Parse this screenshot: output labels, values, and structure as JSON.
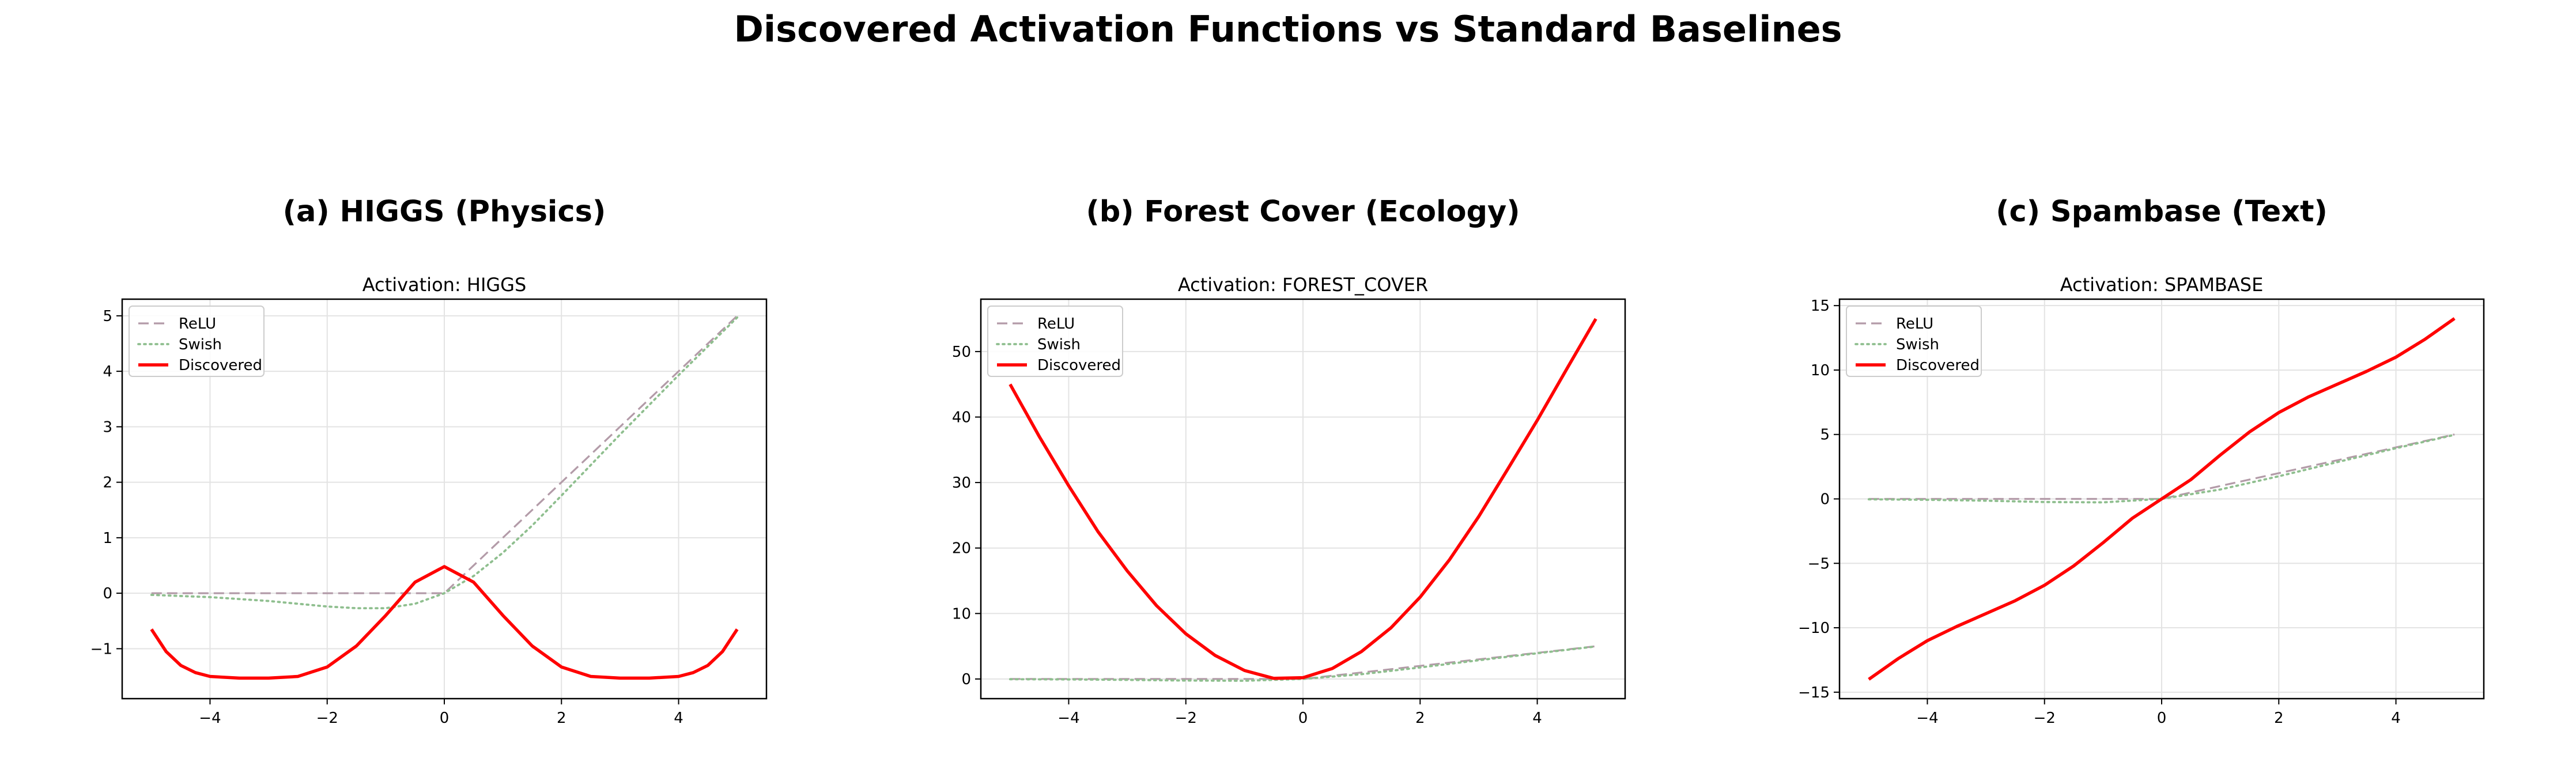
{
  "figure": {
    "suptitle": "Discovered Activation Functions vs Standard Baselines"
  },
  "chart_data": [
    {
      "type": "line",
      "panel_title": "(a) HIGGS (Physics)",
      "title": "Activation: HIGGS",
      "xlabel": "",
      "ylabel": "",
      "xlim": [
        -5.5,
        5.5
      ],
      "ylim": [
        -1.9,
        5.3
      ],
      "xticks": [
        -4,
        -2,
        0,
        2,
        4
      ],
      "xtick_labels": [
        "−4",
        "−2",
        "0",
        "2",
        "4"
      ],
      "yticks": [
        -1,
        0,
        1,
        2,
        3,
        4,
        5
      ],
      "ytick_labels": [
        "−1",
        "0",
        "1",
        "2",
        "3",
        "4",
        "5"
      ],
      "grid": true,
      "legend_position": "upper-left",
      "series": [
        {
          "name": "ReLU",
          "style": "dashed",
          "color": "#b39ba8",
          "x": [
            -5,
            -4,
            -3,
            -2,
            -1,
            0,
            1,
            2,
            3,
            4,
            5
          ],
          "y": [
            0,
            0,
            0,
            0,
            0,
            0,
            1,
            2,
            3,
            4,
            5
          ]
        },
        {
          "name": "Swish",
          "style": "dotted",
          "color": "#8fbf8f",
          "x": [
            -5,
            -4,
            -3,
            -2,
            -1.5,
            -1,
            -0.5,
            0,
            0.5,
            1,
            1.5,
            2,
            3,
            4,
            5
          ],
          "y": [
            -0.03,
            -0.07,
            -0.14,
            -0.24,
            -0.27,
            -0.27,
            -0.19,
            0,
            0.31,
            0.73,
            1.22,
            1.76,
            2.86,
            3.93,
            4.97
          ]
        },
        {
          "name": "Discovered",
          "style": "solid",
          "color": "#ff0000",
          "x": [
            -5,
            -4.75,
            -4.5,
            -4.25,
            -4,
            -3.5,
            -3,
            -2.5,
            -2,
            -1.5,
            -1,
            -0.5,
            0,
            0.5,
            1,
            1.5,
            2,
            2.5,
            3,
            3.5,
            4,
            4.25,
            4.5,
            4.75,
            5
          ],
          "y": [
            -0.65,
            -1.05,
            -1.3,
            -1.43,
            -1.5,
            -1.53,
            -1.53,
            -1.5,
            -1.33,
            -0.95,
            -0.4,
            0.2,
            0.48,
            0.2,
            -0.4,
            -0.95,
            -1.33,
            -1.5,
            -1.53,
            -1.53,
            -1.5,
            -1.43,
            -1.3,
            -1.05,
            -0.65
          ]
        }
      ]
    },
    {
      "type": "line",
      "panel_title": "(b) Forest Cover (Ecology)",
      "title": "Activation: FOREST_COVER",
      "xlabel": "",
      "ylabel": "",
      "xlim": [
        -5.5,
        5.5
      ],
      "ylim": [
        -3,
        58
      ],
      "xticks": [
        -4,
        -2,
        0,
        2,
        4
      ],
      "xtick_labels": [
        "−4",
        "−2",
        "0",
        "2",
        "4"
      ],
      "yticks": [
        0,
        10,
        20,
        30,
        40,
        50
      ],
      "ytick_labels": [
        "0",
        "10",
        "20",
        "30",
        "40",
        "50"
      ],
      "grid": true,
      "legend_position": "upper-left",
      "series": [
        {
          "name": "ReLU",
          "style": "dashed",
          "color": "#b39ba8",
          "x": [
            -5,
            -4,
            -3,
            -2,
            -1,
            0,
            1,
            2,
            3,
            4,
            5
          ],
          "y": [
            0,
            0,
            0,
            0,
            0,
            0,
            1,
            2,
            3,
            4,
            5
          ]
        },
        {
          "name": "Swish",
          "style": "dotted",
          "color": "#8fbf8f",
          "x": [
            -5,
            -4,
            -3,
            -2,
            -1,
            0,
            1,
            2,
            3,
            4,
            5
          ],
          "y": [
            -0.03,
            -0.07,
            -0.14,
            -0.24,
            -0.27,
            0,
            0.73,
            1.76,
            2.86,
            3.93,
            4.97
          ]
        },
        {
          "name": "Discovered",
          "style": "solid",
          "color": "#ff0000",
          "x": [
            -5,
            -4.5,
            -4,
            -3.5,
            -3,
            -2.5,
            -2,
            -1.5,
            -1,
            -0.5,
            0,
            0.5,
            1,
            1.5,
            2,
            2.5,
            3,
            3.5,
            4,
            4.5,
            5
          ],
          "y": [
            45,
            37,
            29.5,
            22.5,
            16.5,
            11.2,
            6.9,
            3.6,
            1.3,
            0.1,
            0.2,
            1.6,
            4.2,
            7.8,
            12.5,
            18.2,
            24.8,
            32.1,
            39.5,
            47.3,
            55
          ]
        }
      ]
    },
    {
      "type": "line",
      "panel_title": "(c) Spambase (Text)",
      "title": "Activation: SPAMBASE",
      "xlabel": "",
      "ylabel": "",
      "xlim": [
        -5.5,
        5.5
      ],
      "ylim": [
        -15.5,
        15.5
      ],
      "xticks": [
        -4,
        -2,
        0,
        2,
        4
      ],
      "xtick_labels": [
        "−4",
        "−2",
        "0",
        "2",
        "4"
      ],
      "yticks": [
        -15,
        -10,
        -5,
        0,
        5,
        10,
        15
      ],
      "ytick_labels": [
        "−15",
        "−10",
        "−5",
        "0",
        "5",
        "10",
        "15"
      ],
      "grid": true,
      "legend_position": "upper-left",
      "series": [
        {
          "name": "ReLU",
          "style": "dashed",
          "color": "#b39ba8",
          "x": [
            -5,
            -4,
            -3,
            -2,
            -1,
            0,
            1,
            2,
            3,
            4,
            5
          ],
          "y": [
            0,
            0,
            0,
            0,
            0,
            0,
            1,
            2,
            3,
            4,
            5
          ]
        },
        {
          "name": "Swish",
          "style": "dotted",
          "color": "#8fbf8f",
          "x": [
            -5,
            -4,
            -3,
            -2,
            -1,
            0,
            1,
            2,
            3,
            4,
            5
          ],
          "y": [
            -0.03,
            -0.07,
            -0.14,
            -0.24,
            -0.27,
            0,
            0.73,
            1.76,
            2.86,
            3.93,
            4.97
          ]
        },
        {
          "name": "Discovered",
          "style": "solid",
          "color": "#ff0000",
          "x": [
            -5,
            -4.5,
            -4,
            -3.5,
            -3,
            -2.5,
            -2,
            -1.5,
            -1,
            -0.5,
            0,
            0.5,
            1,
            1.5,
            2,
            2.5,
            3,
            3.5,
            4,
            4.5,
            5
          ],
          "y": [
            -14,
            -12.4,
            -11,
            -9.9,
            -8.9,
            -7.9,
            -6.7,
            -5.2,
            -3.4,
            -1.5,
            0,
            1.5,
            3.4,
            5.2,
            6.7,
            7.9,
            8.9,
            9.9,
            11,
            12.4,
            14
          ]
        }
      ]
    }
  ]
}
